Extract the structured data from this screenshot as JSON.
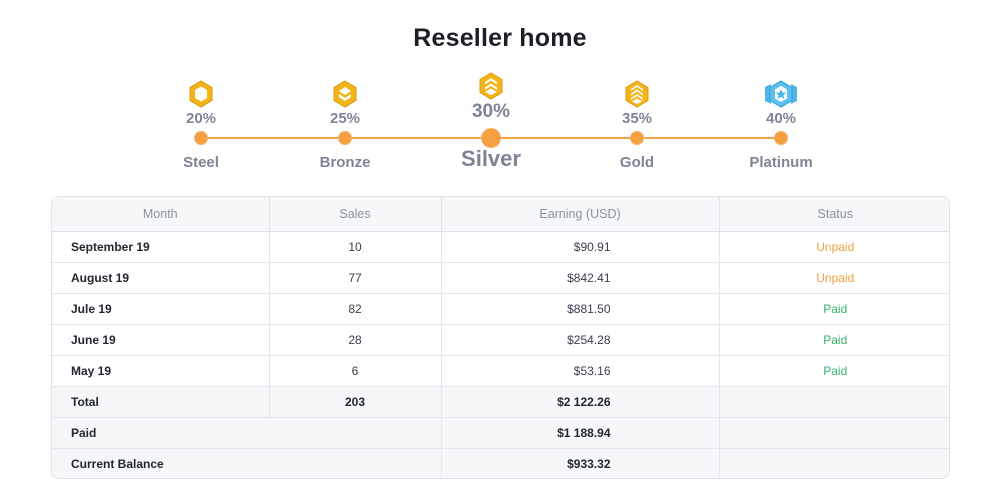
{
  "page": {
    "title": "Reseller home"
  },
  "tiers": [
    {
      "name": "Steel",
      "percent": "20%",
      "icon": "steel-badge-icon",
      "color": "#f2b417"
    },
    {
      "name": "Bronze",
      "percent": "25%",
      "icon": "bronze-badge-icon",
      "color": "#f2b417"
    },
    {
      "name": "Silver",
      "percent": "30%",
      "icon": "silver-badge-icon",
      "color": "#f2b417",
      "current": true
    },
    {
      "name": "Gold",
      "percent": "35%",
      "icon": "gold-badge-icon",
      "color": "#f2b417"
    },
    {
      "name": "Platinum",
      "percent": "40%",
      "icon": "platinum-badge-icon",
      "color": "#4fb6ea"
    }
  ],
  "table": {
    "headers": {
      "month": "Month",
      "sales": "Sales",
      "earning": "Earning (USD)",
      "status": "Status"
    },
    "rows": [
      {
        "month": "September 19",
        "sales": "10",
        "earning": "$90.91",
        "status": "Unpaid"
      },
      {
        "month": "August 19",
        "sales": "77",
        "earning": "$842.41",
        "status": "Unpaid"
      },
      {
        "month": "Jule 19",
        "sales": "82",
        "earning": "$881.50",
        "status": "Paid"
      },
      {
        "month": "June 19",
        "sales": "28",
        "earning": "$254.28",
        "status": "Paid"
      },
      {
        "month": "May 19",
        "sales": "6",
        "earning": "$53.16",
        "status": "Paid"
      }
    ],
    "total": {
      "label": "Total",
      "sales": "203",
      "earning": "$2 122.26"
    },
    "paid": {
      "label": "Paid",
      "earning": "$1 188.94"
    },
    "balance": {
      "label": "Current Balance",
      "earning": "$933.32"
    }
  },
  "colors": {
    "accent": "#f6a042",
    "unpaid": "#f0a040",
    "paid": "#33b56b"
  }
}
